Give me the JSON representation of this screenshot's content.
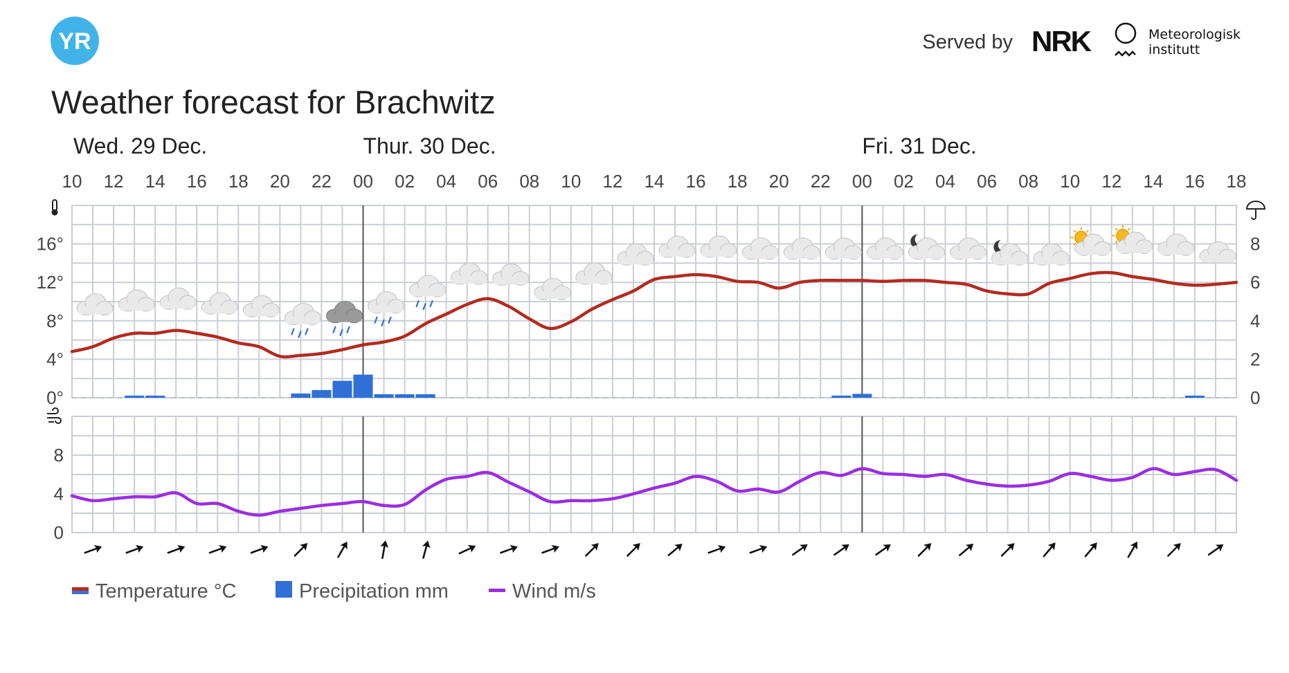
{
  "header": {
    "logo_text": "YR",
    "served_by": "Served by",
    "nrk_logo": "NRK",
    "met_name_line1": "Meteorologisk",
    "met_name_line2": "institutt"
  },
  "title": "Weather forecast for Brachwitz",
  "colors": {
    "temperature": "#b22b20",
    "temperature_legend_bottom": "#3c6ed6",
    "precipitation": "#2f6fd6",
    "wind": "#9b2ee0",
    "yr_logo": "#40b4e8",
    "grid": "#c9ced6"
  },
  "chart_data": [
    {
      "type": "line",
      "name": "temperature-precipitation",
      "days": [
        {
          "label": "Wed. 29 Dec.",
          "hour": 10
        },
        {
          "label": "Thur. 30 Dec.",
          "hour": 24
        },
        {
          "label": "Fri. 31 Dec.",
          "hour": 48
        }
      ],
      "x_hour_range": [
        10,
        66
      ],
      "x_tick_labels": [
        "10",
        "12",
        "14",
        "16",
        "18",
        "20",
        "22",
        "00",
        "02",
        "04",
        "06",
        "08",
        "10",
        "12",
        "14",
        "16",
        "18",
        "20",
        "22",
        "00",
        "02",
        "04",
        "06",
        "08",
        "10",
        "12",
        "14",
        "16",
        "18"
      ],
      "y_left_ticks": [
        "0°",
        "4°",
        "8°",
        "12°",
        "16°"
      ],
      "y_left_range": [
        0,
        20
      ],
      "y_right_ticks": [
        "0",
        "2",
        "4",
        "6",
        "8"
      ],
      "y_right_range": [
        0,
        10
      ],
      "temperature": {
        "unit": "°C",
        "x": [
          10,
          11,
          12,
          13,
          14,
          15,
          16,
          17,
          18,
          19,
          20,
          21,
          22,
          23,
          24,
          25,
          26,
          27,
          28,
          29,
          30,
          31,
          32,
          33,
          34,
          35,
          36,
          37,
          38,
          39,
          40,
          41,
          42,
          43,
          44,
          45,
          46,
          47,
          48,
          49,
          50,
          51,
          52,
          53,
          54,
          55,
          56,
          57,
          58,
          59,
          60,
          61,
          62,
          63,
          64,
          65,
          66
        ],
        "values": [
          4.8,
          5.3,
          6.2,
          6.7,
          6.7,
          7.0,
          6.7,
          6.3,
          5.7,
          5.3,
          4.3,
          4.4,
          4.6,
          5.0,
          5.5,
          5.8,
          6.4,
          7.7,
          8.7,
          9.7,
          10.3,
          9.5,
          8.2,
          7.2,
          7.9,
          9.2,
          10.2,
          11.1,
          12.3,
          12.6,
          12.8,
          12.6,
          12.1,
          12.0,
          11.4,
          12.0,
          12.2,
          12.2,
          12.2,
          12.1,
          12.2,
          12.2,
          12.0,
          11.8,
          11.1,
          10.8,
          10.8,
          11.9,
          12.4,
          12.9,
          13.0,
          12.6,
          12.3,
          11.9,
          11.7,
          11.8,
          12.0
        ]
      },
      "precipitation": {
        "unit": "mm",
        "bars": [
          {
            "x": 13,
            "value": 0.08
          },
          {
            "x": 14,
            "value": 0.08
          },
          {
            "x": 21,
            "value": 0.22
          },
          {
            "x": 22,
            "value": 0.4
          },
          {
            "x": 23,
            "value": 0.88
          },
          {
            "x": 24,
            "value": 1.2
          },
          {
            "x": 25,
            "value": 0.18
          },
          {
            "x": 26,
            "value": 0.18
          },
          {
            "x": 27,
            "value": 0.18
          },
          {
            "x": 47,
            "value": 0.08
          },
          {
            "x": 48,
            "value": 0.2
          },
          {
            "x": 64,
            "value": 0.08
          }
        ]
      },
      "weather_icons": [
        {
          "hour": 11,
          "icon": "cloudy",
          "temp": 9.6
        },
        {
          "hour": 13,
          "icon": "cloudy",
          "temp": 10.0
        },
        {
          "hour": 15,
          "icon": "cloudy",
          "temp": 10.2
        },
        {
          "hour": 17,
          "icon": "cloudy",
          "temp": 9.7
        },
        {
          "hour": 19,
          "icon": "cloudy",
          "temp": 9.4
        },
        {
          "hour": 21,
          "icon": "rain",
          "temp": 8.6
        },
        {
          "hour": 23,
          "icon": "rain-heavy",
          "temp": 8.8
        },
        {
          "hour": 25,
          "icon": "rain",
          "temp": 9.8
        },
        {
          "hour": 27,
          "icon": "rain",
          "temp": 11.5
        },
        {
          "hour": 29,
          "icon": "cloudy",
          "temp": 12.8
        },
        {
          "hour": 31,
          "icon": "cloudy",
          "temp": 12.7
        },
        {
          "hour": 33,
          "icon": "cloudy",
          "temp": 11.2
        },
        {
          "hour": 35,
          "icon": "cloudy",
          "temp": 12.8
        },
        {
          "hour": 37,
          "icon": "cloudy",
          "temp": 14.8
        },
        {
          "hour": 39,
          "icon": "cloudy",
          "temp": 15.6
        },
        {
          "hour": 41,
          "icon": "cloudy",
          "temp": 15.6
        },
        {
          "hour": 43,
          "icon": "cloudy",
          "temp": 15.4
        },
        {
          "hour": 45,
          "icon": "cloudy",
          "temp": 15.4
        },
        {
          "hour": 47,
          "icon": "cloudy",
          "temp": 15.4
        },
        {
          "hour": 49,
          "icon": "cloudy",
          "temp": 15.4
        },
        {
          "hour": 51,
          "icon": "cloudy-night",
          "temp": 15.4
        },
        {
          "hour": 53,
          "icon": "cloudy",
          "temp": 15.4
        },
        {
          "hour": 55,
          "icon": "cloudy-night",
          "temp": 14.8
        },
        {
          "hour": 57,
          "icon": "cloudy",
          "temp": 14.8
        },
        {
          "hour": 59,
          "icon": "partly-sunny",
          "temp": 15.8
        },
        {
          "hour": 61,
          "icon": "partly-sunny",
          "temp": 16.0
        },
        {
          "hour": 63,
          "icon": "cloudy",
          "temp": 15.8
        },
        {
          "hour": 65,
          "icon": "cloudy",
          "temp": 15.0
        }
      ],
      "weather_icon_names": [
        "cloud-icon",
        "rain-icon",
        "moon-icon",
        "sun-icon"
      ]
    },
    {
      "type": "line",
      "name": "wind",
      "unit": "m/s",
      "x_hour_range": [
        10,
        66
      ],
      "y_ticks": [
        "0",
        "4",
        "8"
      ],
      "y_range": [
        0,
        12
      ],
      "x": [
        10,
        11,
        12,
        13,
        14,
        15,
        16,
        17,
        18,
        19,
        20,
        21,
        22,
        23,
        24,
        25,
        26,
        27,
        28,
        29,
        30,
        31,
        32,
        33,
        34,
        35,
        36,
        37,
        38,
        39,
        40,
        41,
        42,
        43,
        44,
        45,
        46,
        47,
        48,
        49,
        50,
        51,
        52,
        53,
        54,
        55,
        56,
        57,
        58,
        59,
        60,
        61,
        62,
        63,
        64,
        65,
        66
      ],
      "values": [
        3.8,
        3.3,
        3.5,
        3.7,
        3.7,
        4.1,
        3.0,
        3.0,
        2.2,
        1.8,
        2.2,
        2.5,
        2.8,
        3.0,
        3.2,
        2.8,
        2.9,
        4.4,
        5.5,
        5.8,
        6.2,
        5.2,
        4.2,
        3.2,
        3.3,
        3.3,
        3.5,
        4.0,
        4.6,
        5.1,
        5.8,
        5.3,
        4.3,
        4.5,
        4.2,
        5.3,
        6.2,
        5.9,
        6.6,
        6.1,
        6.0,
        5.8,
        6.0,
        5.4,
        5.0,
        4.8,
        4.9,
        5.3,
        6.1,
        5.8,
        5.4,
        5.7,
        6.6,
        6.0,
        6.3,
        6.5,
        5.4
      ],
      "wind_direction_degrees": [
        70,
        70,
        70,
        70,
        70,
        45,
        30,
        10,
        15,
        65,
        70,
        70,
        45,
        45,
        50,
        70,
        70,
        55,
        55,
        55,
        45,
        50,
        45,
        40,
        40,
        30,
        45,
        55
      ]
    }
  ],
  "legend": {
    "temperature": "Temperature °C",
    "precipitation": "Precipitation mm",
    "wind": "Wind m/s"
  }
}
